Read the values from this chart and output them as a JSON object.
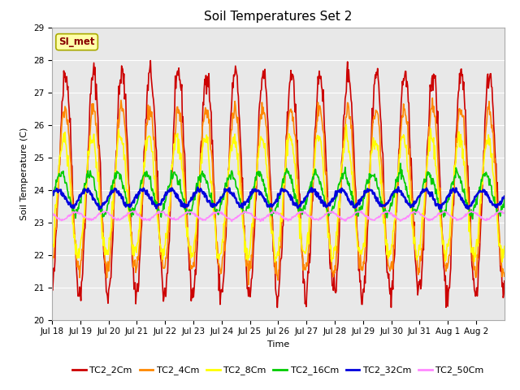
{
  "title": "Soil Temperatures Set 2",
  "xlabel": "Time",
  "ylabel": "Soil Temperature (C)",
  "ylim": [
    20.0,
    29.0
  ],
  "yticks": [
    20.0,
    21.0,
    22.0,
    23.0,
    24.0,
    25.0,
    26.0,
    27.0,
    28.0,
    29.0
  ],
  "annotation_text": "SI_met",
  "plot_bg_color": "#e8e8e8",
  "fig_bg_color": "#ffffff",
  "series_colors": {
    "TC2_2Cm": "#cc0000",
    "TC2_4Cm": "#ff8800",
    "TC2_8Cm": "#ffff00",
    "TC2_16Cm": "#00cc00",
    "TC2_32Cm": "#0000dd",
    "TC2_50Cm": "#ff88ff"
  },
  "series_linewidths": {
    "TC2_2Cm": 1.2,
    "TC2_4Cm": 1.2,
    "TC2_8Cm": 1.2,
    "TC2_16Cm": 1.2,
    "TC2_32Cm": 1.8,
    "TC2_50Cm": 1.2
  },
  "n_days": 16,
  "points_per_day": 48,
  "x_tick_labels": [
    "Jul 18",
    "Jul 19",
    "Jul 20",
    "Jul 21",
    "Jul 22",
    "Jul 23",
    "Jul 24",
    "Jul 25",
    "Jul 26",
    "Jul 27",
    "Jul 28",
    "Jul 29",
    "Jul 30",
    "Jul 31",
    "Aug 1",
    "Aug 2"
  ],
  "title_fontsize": 11,
  "axis_label_fontsize": 8,
  "tick_fontsize": 7.5,
  "legend_fontsize": 8,
  "figsize": [
    6.4,
    4.8
  ],
  "dpi": 100
}
